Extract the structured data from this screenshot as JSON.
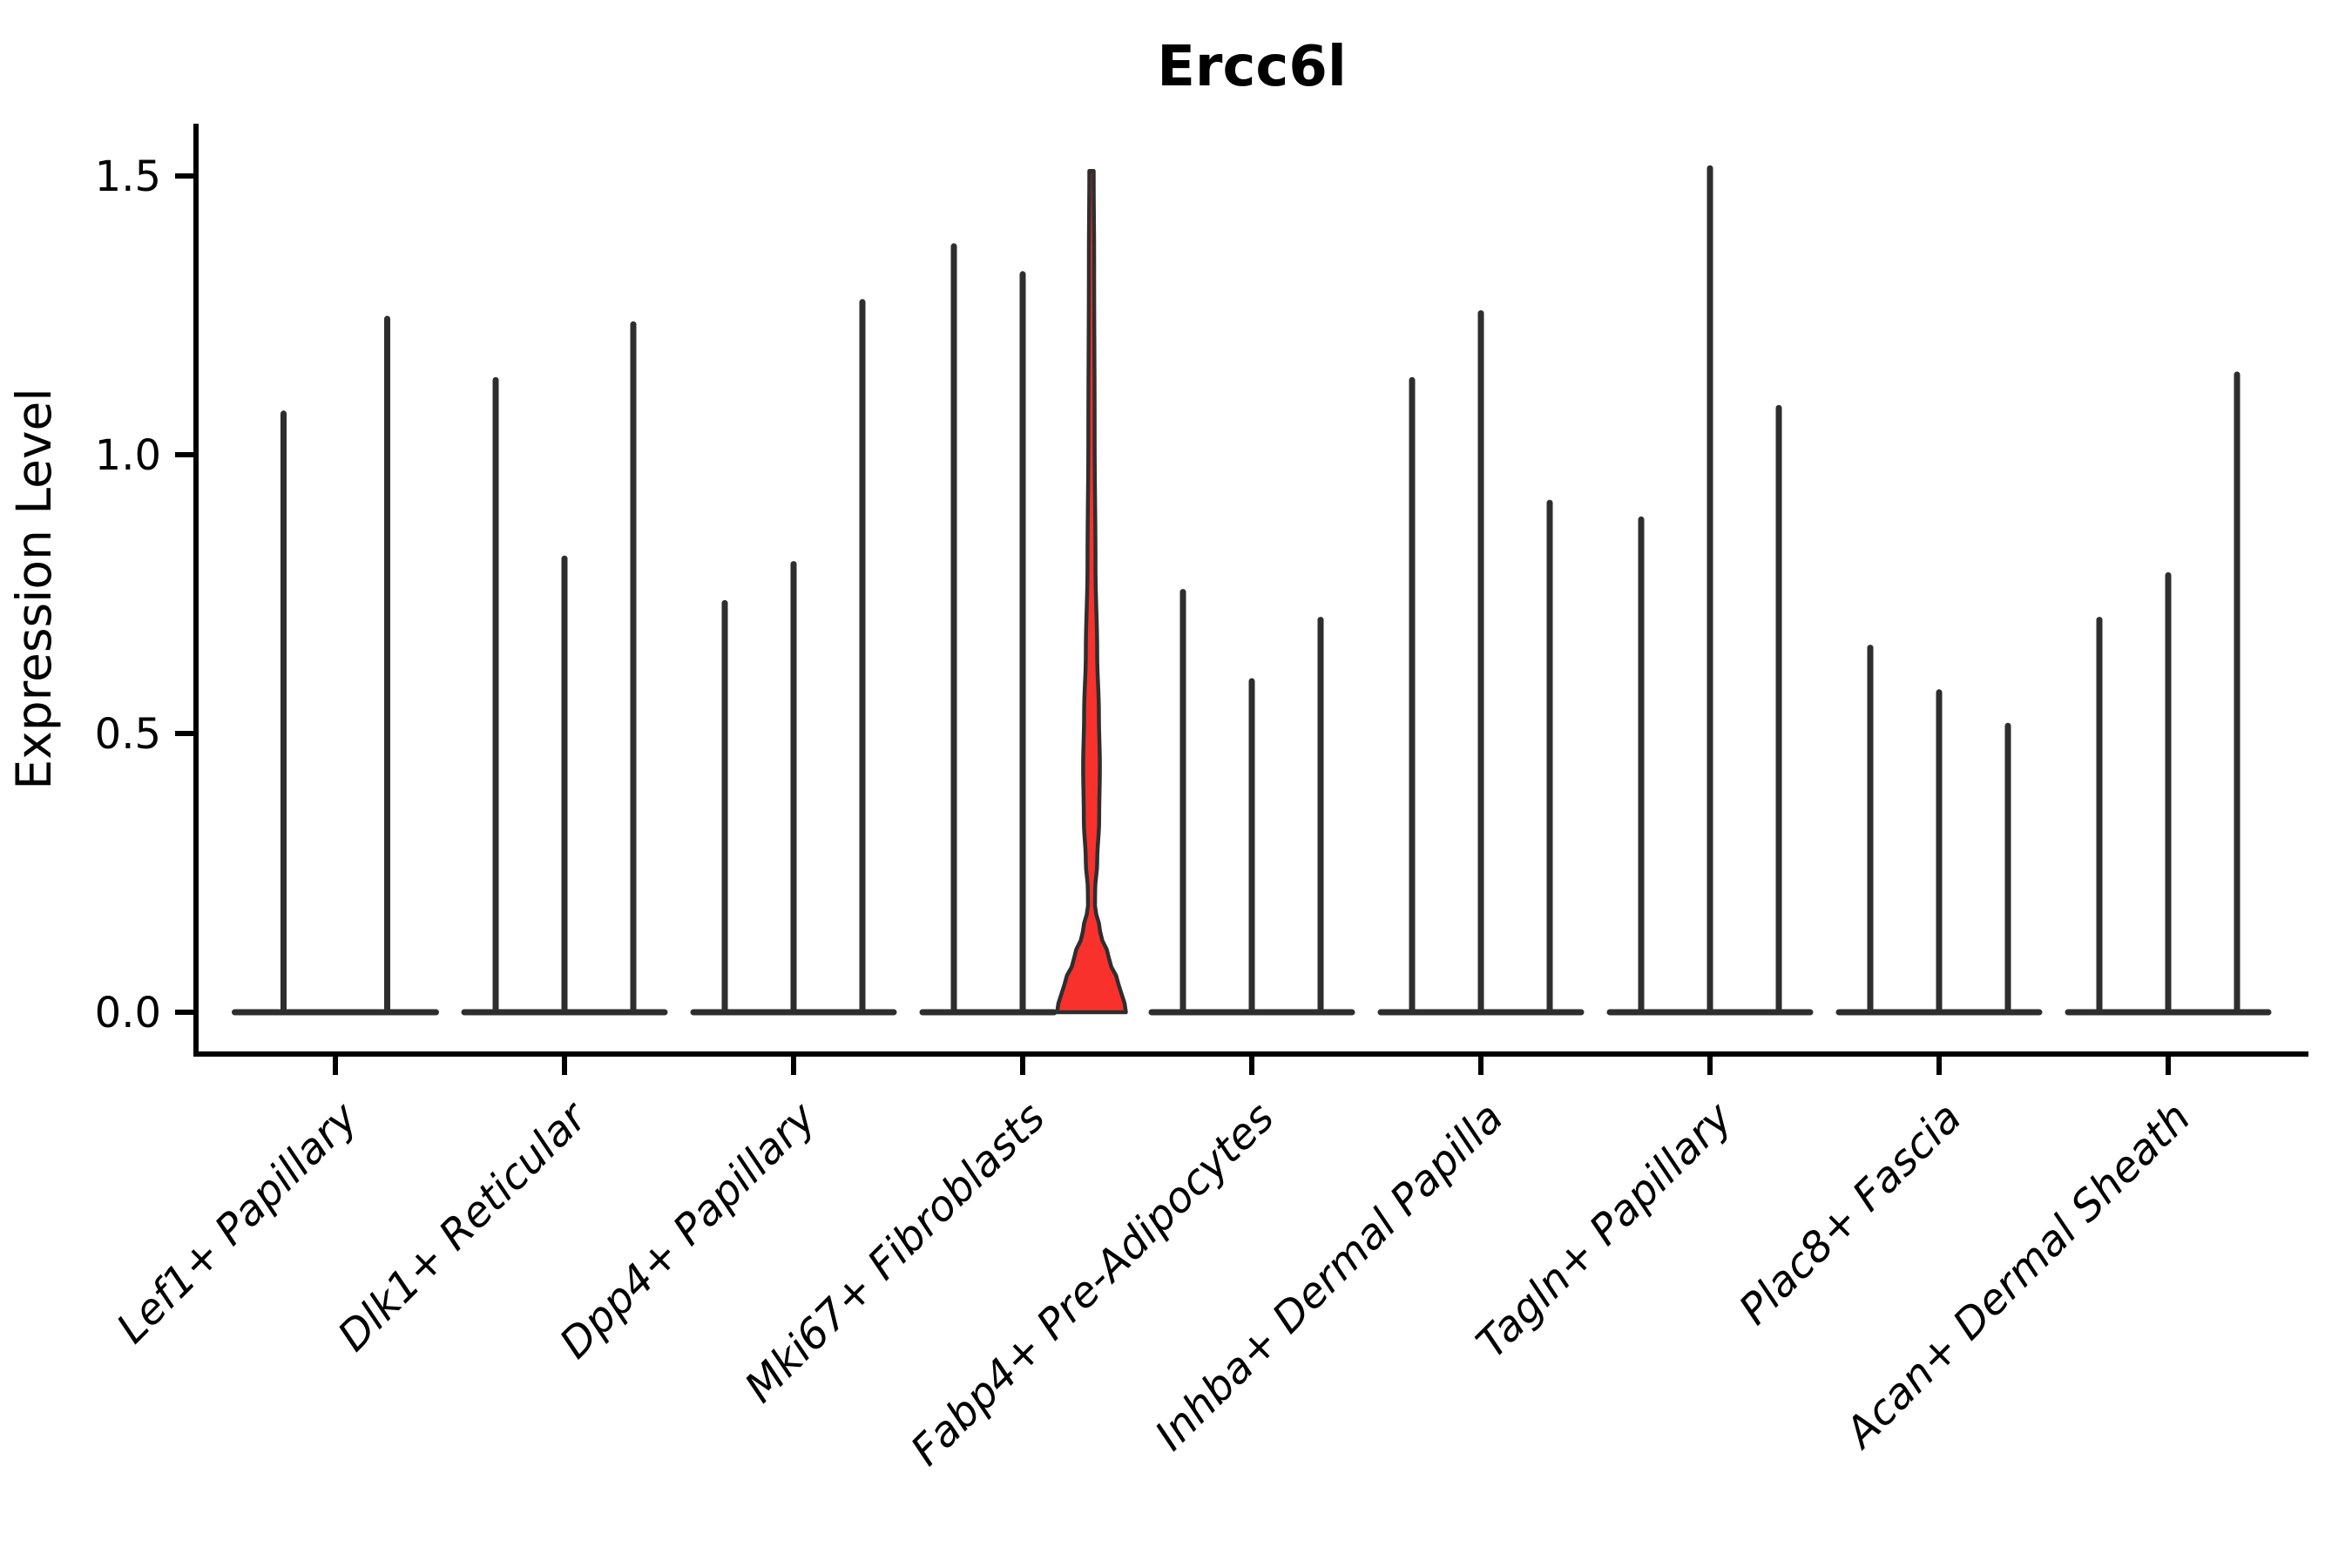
{
  "figure": {
    "title": "Ercc6l",
    "ylabel": "Expression Level"
  },
  "chart_data": {
    "type": "violin",
    "title": "Ercc6l",
    "xlabel": "",
    "ylabel": "Expression Level",
    "ylim": [
      -0.075,
      1.59
    ],
    "yticks": [
      "0.0",
      "0.5",
      "1.0",
      "1.5"
    ],
    "ytick_values": [
      0.0,
      0.5,
      1.0,
      1.5
    ],
    "grid": false,
    "legend": "none",
    "outline_color": "#2e2e2e",
    "highlight_color": "#f8312c",
    "background_color": "#ffffff",
    "groups": [
      {
        "label": "Lef1+ Papillary",
        "violins": [
          {
            "max": 1.08,
            "highlighted": false
          },
          {
            "max": 1.25,
            "highlighted": false
          }
        ]
      },
      {
        "label": "Dlk1+ Reticular",
        "violins": [
          {
            "max": 1.14,
            "highlighted": false
          },
          {
            "max": 0.82,
            "highlighted": false
          },
          {
            "max": 1.24,
            "highlighted": false
          }
        ]
      },
      {
        "label": "Dpp4+ Papillary",
        "violins": [
          {
            "max": 0.74,
            "highlighted": false
          },
          {
            "max": 0.81,
            "highlighted": false
          },
          {
            "max": 1.28,
            "highlighted": false
          }
        ]
      },
      {
        "label": "Mki67+ Fibroblasts",
        "violins": [
          {
            "max": 1.38,
            "highlighted": false
          },
          {
            "max": 1.33,
            "highlighted": false
          },
          {
            "max": 1.51,
            "highlighted": true
          }
        ]
      },
      {
        "label": "Fabp4+ Pre-Adipocytes",
        "violins": [
          {
            "max": 0.76,
            "highlighted": false
          },
          {
            "max": 0.6,
            "highlighted": false
          },
          {
            "max": 0.71,
            "highlighted": false
          }
        ]
      },
      {
        "label": "Inhba+ Dermal Papilla",
        "violins": [
          {
            "max": 1.14,
            "highlighted": false
          },
          {
            "max": 1.26,
            "highlighted": false
          },
          {
            "max": 0.92,
            "highlighted": false
          }
        ]
      },
      {
        "label": "Tagln+ Papillary",
        "violins": [
          {
            "max": 0.89,
            "highlighted": false
          },
          {
            "max": 1.52,
            "highlighted": false
          },
          {
            "max": 1.09,
            "highlighted": false
          }
        ]
      },
      {
        "label": "Plac8+ Fascia",
        "violins": [
          {
            "max": 0.66,
            "highlighted": false
          },
          {
            "max": 0.58,
            "highlighted": false
          },
          {
            "max": 0.52,
            "highlighted": false
          }
        ]
      },
      {
        "label": "Acan+ Dermal Sheath",
        "violins": [
          {
            "max": 0.71,
            "highlighted": false
          },
          {
            "max": 0.79,
            "highlighted": false
          },
          {
            "max": 1.15,
            "highlighted": false
          }
        ]
      }
    ],
    "highlight_profile": [
      [
        1.509,
        0.063
      ],
      [
        1.347,
        0.076
      ],
      [
        1.034,
        0.091
      ],
      [
        0.8,
        0.116
      ],
      [
        0.644,
        0.165
      ],
      [
        0.534,
        0.215
      ],
      [
        0.441,
        0.243
      ],
      [
        0.347,
        0.223
      ],
      [
        0.269,
        0.165
      ],
      [
        0.219,
        0.106
      ],
      [
        0.191,
        0.101
      ],
      [
        0.144,
        0.253
      ],
      [
        0.097,
        0.506
      ],
      [
        0.05,
        0.785
      ],
      [
        0.016,
        0.962
      ],
      [
        0.0,
        1.0
      ]
    ]
  }
}
